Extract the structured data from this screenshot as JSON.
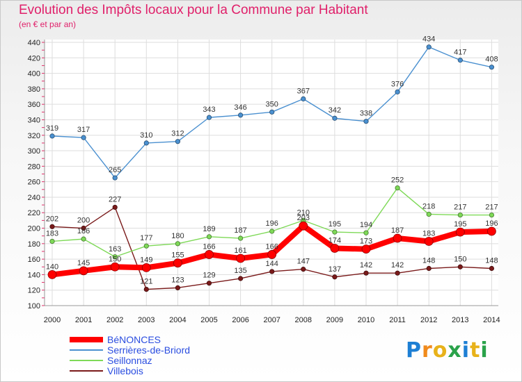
{
  "header": {
    "title": "Evolution des Impôts locaux pour la Commune par Habitant",
    "subtitle": "(en € et par an)"
  },
  "logo": {
    "letters": [
      {
        "ch": "P",
        "color": "#1d7fd4"
      },
      {
        "ch": "r",
        "color": "#f08a1c"
      },
      {
        "ch": "o",
        "color": "#e8b21a"
      },
      {
        "ch": "x",
        "color": "#2aa24a"
      },
      {
        "ch": "i",
        "color": "#1d7fd4"
      },
      {
        "ch": "t",
        "color": "#e8b21a"
      },
      {
        "ch": "i",
        "color": "#2aa24a"
      }
    ]
  },
  "chart_data": {
    "type": "line",
    "x": [
      2000,
      2001,
      2002,
      2003,
      2004,
      2005,
      2006,
      2007,
      2008,
      2009,
      2010,
      2011,
      2012,
      2013,
      2014
    ],
    "ylim": [
      100,
      440
    ],
    "yticks": [
      100,
      120,
      140,
      160,
      180,
      200,
      220,
      240,
      260,
      280,
      300,
      320,
      340,
      360,
      380,
      400,
      420,
      440
    ],
    "grid": true,
    "legend_position": "bottom-left",
    "series": [
      {
        "name": "Villebois",
        "color": "#7a1a1a",
        "values": [
          202,
          200,
          227,
          121,
          123,
          129,
          135,
          144,
          147,
          137,
          142,
          142,
          148,
          150,
          148
        ]
      },
      {
        "name": "Seillonnaz",
        "color": "#7ed957",
        "values": [
          183,
          186,
          163,
          177,
          180,
          189,
          187,
          196,
          210,
          195,
          194,
          252,
          218,
          217,
          217
        ]
      },
      {
        "name": "Serrières-de-Briord",
        "color": "#4a90d0",
        "values": [
          319,
          317,
          265,
          310,
          312,
          343,
          346,
          350,
          367,
          342,
          338,
          376,
          434,
          417,
          408
        ]
      },
      {
        "name": "BéNONCES",
        "color": "#ff0000",
        "values": [
          140,
          145,
          150,
          149,
          155,
          166,
          161,
          166,
          203,
          174,
          173,
          187,
          183,
          195,
          196
        ]
      }
    ]
  }
}
